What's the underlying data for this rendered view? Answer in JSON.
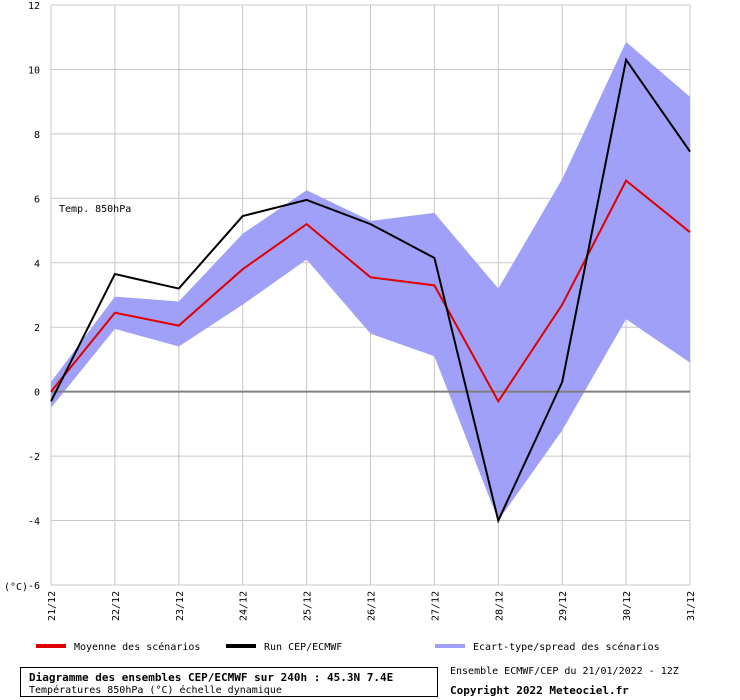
{
  "chart_data": {
    "type": "line",
    "categories": [
      "21/12",
      "22/12",
      "23/12",
      "24/12",
      "25/12",
      "26/12",
      "27/12",
      "28/12",
      "29/12",
      "30/12",
      "31/12"
    ],
    "ylim": [
      -6,
      12
    ],
    "yticks": [
      -6,
      -4,
      -2,
      0,
      2,
      4,
      6,
      8,
      10,
      12
    ],
    "unit_label": "(°C)",
    "annotation": "Temp. 850hPa",
    "grid": true,
    "zero_line": true,
    "series": [
      {
        "name": "Moyenne des scénarios",
        "color": "#e00000",
        "values": [
          0.0,
          2.45,
          2.05,
          3.8,
          5.2,
          3.55,
          3.3,
          -0.3,
          2.7,
          6.55,
          4.95
        ]
      },
      {
        "name": "Run CEP/ECMWF",
        "color": "#000000",
        "values": [
          -0.3,
          3.65,
          3.2,
          5.45,
          5.95,
          5.2,
          4.15,
          -4.0,
          0.3,
          10.3,
          7.45
        ]
      }
    ],
    "band": {
      "name": "Ecart-type/spread des scénarios",
      "color": "#a0a0f8",
      "upper": [
        0.3,
        2.95,
        2.8,
        4.9,
        6.25,
        5.3,
        5.55,
        3.2,
        6.6,
        10.85,
        9.15
      ],
      "lower": [
        -0.5,
        1.95,
        1.4,
        2.7,
        4.1,
        1.8,
        1.1,
        -4.0,
        -1.2,
        2.25,
        0.9
      ]
    }
  },
  "footer": {
    "title": "Diagramme des ensembles CEP/ECMWF sur 240h : 45.3N 7.4E",
    "subtitle": "Températures 850hPa (°C) échelle dynamique",
    "ensemble_info": "Ensemble ECMWF/CEP du 21/01/2022 - 12Z",
    "copyright": "Copyright 2022 Meteociel.fr"
  },
  "legend": {
    "mean_label": "Moyenne des scénarios",
    "run_label": "Run CEP/ECMWF",
    "spread_label": "Ecart-type/spread des scénarios"
  }
}
